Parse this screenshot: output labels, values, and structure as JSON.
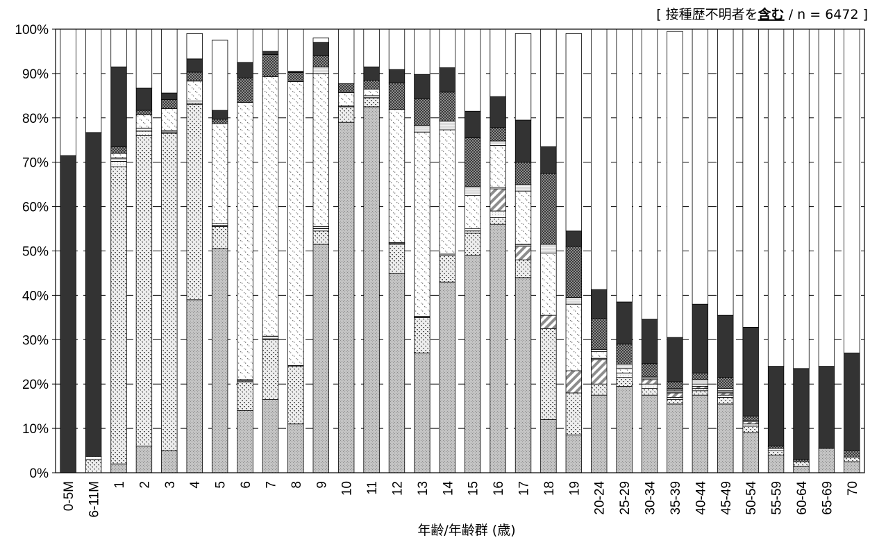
{
  "chart_data": {
    "type": "bar",
    "stacked": true,
    "percent": true,
    "xlabel": "年齢/年齢群 (歳)",
    "ylabel": "",
    "ylim": [
      0,
      100
    ],
    "y_ticks": [
      "0%",
      "10%",
      "20%",
      "30%",
      "40%",
      "50%",
      "60%",
      "70%",
      "80%",
      "90%",
      "100%"
    ],
    "grid": "horizontal dashed",
    "annotation": {
      "prefix": "[ 接種歴不明者を",
      "emphasis": "含む",
      "suffix": " / n = 6472 ]"
    },
    "categories": [
      "0-5M",
      "6-11M",
      "1",
      "2",
      "3",
      "4",
      "5",
      "6",
      "7",
      "8",
      "9",
      "10",
      "11",
      "12",
      "13",
      "14",
      "15",
      "16",
      "17",
      "18",
      "19",
      "20-24",
      "25-29",
      "30-34",
      "35-39",
      "40-44",
      "45-49",
      "50-54",
      "55-59",
      "60-64",
      "65-69",
      "70"
    ],
    "series": [
      {
        "pattern": "light-dotted-gray",
        "values": [
          0,
          0,
          2,
          6,
          5,
          39,
          50.5,
          14,
          16.5,
          11,
          51.5,
          79,
          82.5,
          45,
          27,
          43,
          49,
          56,
          44,
          12,
          8.5,
          17.5,
          19.5,
          17.5,
          15.5,
          17.5,
          15.5,
          9,
          4,
          1.5,
          5.5,
          2.5
        ]
      },
      {
        "pattern": "dotted-band",
        "values": [
          0,
          3,
          67,
          70,
          71.5,
          44,
          5,
          6.5,
          13.5,
          13,
          3,
          3.5,
          2,
          6.5,
          8,
          6,
          5,
          1.5,
          4,
          20.5,
          9.5,
          2.5,
          2,
          1.5,
          1,
          1,
          1.5,
          1.5,
          1,
          1,
          0,
          1
        ]
      },
      {
        "pattern": "light-dots",
        "values": [
          0,
          0.7,
          1.2,
          1,
          0.3,
          0.3,
          0.2,
          0.2,
          0.2,
          0,
          0.5,
          0,
          0,
          0.2,
          0,
          0,
          0.5,
          1.5,
          0,
          0,
          0,
          0,
          1,
          1,
          0.5,
          0.5,
          0.5,
          0.5,
          0.5,
          0,
          0,
          0
        ]
      },
      {
        "pattern": "diagonal-hatch",
        "values": [
          0,
          0,
          0,
          0,
          0,
          0,
          0,
          0,
          0,
          0,
          0,
          0,
          0,
          0,
          0,
          0,
          0,
          5,
          3,
          3,
          5,
          5.5,
          0,
          1,
          1,
          0.5,
          0.5,
          0.5,
          0,
          0,
          0,
          0
        ]
      },
      {
        "pattern": "horizontal-hatch",
        "values": [
          0,
          0,
          0.8,
          0.7,
          0.3,
          0.5,
          0.5,
          0.3,
          0.6,
          0.2,
          0.5,
          0.2,
          0.5,
          0.2,
          0.3,
          0.3,
          0.5,
          0.3,
          0.5,
          0,
          0,
          0.3,
          0,
          0,
          0.5,
          0,
          0.5,
          0.3,
          0,
          0,
          0,
          0
        ]
      },
      {
        "pattern": "white-speckle",
        "values": [
          0,
          0,
          1,
          3,
          5,
          4.5,
          22.5,
          62.5,
          58.5,
          64,
          34.5,
          3,
          1.5,
          30,
          41.5,
          28,
          7.5,
          9.5,
          12,
          14,
          15,
          1.5,
          1,
          0.3,
          0.2,
          0.5,
          0,
          0,
          0,
          0,
          0,
          0
        ]
      },
      {
        "pattern": "light-band",
        "values": [
          0,
          0,
          0,
          0,
          0,
          0,
          0,
          0,
          0,
          0,
          1.5,
          0,
          0,
          0,
          1.5,
          2,
          2,
          1,
          1.5,
          2,
          1.5,
          0.5,
          1,
          0.3,
          0.3,
          1,
          0.5,
          0,
          0,
          0,
          0,
          0
        ]
      },
      {
        "pattern": "dark-checker",
        "values": [
          0,
          0,
          1.5,
          1,
          2,
          2,
          1,
          5.5,
          5,
          2,
          2.5,
          2,
          2,
          6,
          6,
          6.5,
          11,
          3,
          5,
          16,
          11.5,
          7,
          4.5,
          3,
          1.5,
          1.5,
          2.5,
          1,
          0.5,
          0.5,
          0,
          1.5
        ]
      },
      {
        "pattern": "solid-dark",
        "values": [
          71.5,
          73,
          18,
          5,
          1.5,
          3,
          2,
          3.5,
          0.7,
          0.3,
          3,
          0,
          3,
          3,
          5.5,
          5.5,
          6,
          7,
          9.5,
          6,
          3.5,
          6.5,
          9.5,
          10,
          10,
          15.5,
          14,
          20,
          18,
          20.5,
          18.5,
          22
        ]
      },
      {
        "pattern": "white",
        "values": [
          28.5,
          23.3,
          9.5,
          13.3,
          14.4,
          5.7,
          15.8,
          7.5,
          5,
          9.5,
          1,
          12.3,
          8.5,
          9.1,
          10.7,
          8.7,
          18.5,
          15.2,
          19.5,
          26.5,
          44.5,
          59.2,
          61.5,
          65.4,
          69,
          62,
          65.5,
          67.2,
          76,
          76.5,
          76,
          73
        ]
      }
    ]
  }
}
